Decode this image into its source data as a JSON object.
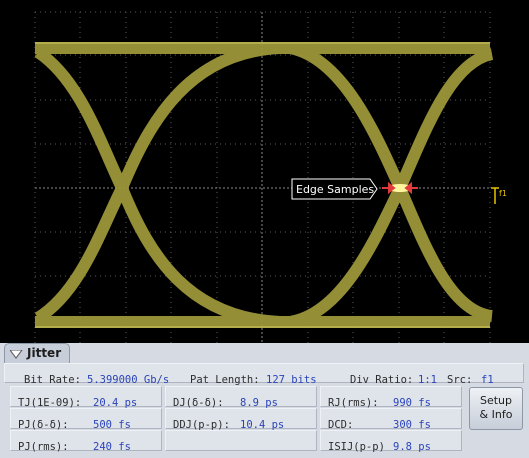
{
  "screen": {
    "marker_label": "Edge Samples",
    "trigger_label": "f1"
  },
  "panel": {
    "tab": "Jitter",
    "header": [
      {
        "label": "Bit Rate:",
        "value": "5.399000 Gb/s"
      },
      {
        "label": "Pat Length:",
        "value": "127 bits"
      },
      {
        "label": "Div Ratio:",
        "value": "1:1"
      },
      {
        "label": "Src:",
        "value": "f1"
      }
    ],
    "measurements": [
      [
        {
          "label": "TJ(1E-09):",
          "value": "20.4 ps"
        },
        {
          "label": "DJ(δ-δ):",
          "value": "8.9 ps"
        },
        {
          "label": "RJ(rms):",
          "value": "990 fs"
        }
      ],
      [
        {
          "label": "PJ(δ-δ):",
          "value": "500 fs"
        },
        {
          "label": "DDJ(p-p):",
          "value": "10.4 ps"
        },
        {
          "label": "DCD:",
          "value": "300 fs"
        }
      ],
      [
        {
          "label": "PJ(rms):",
          "value": "240 fs"
        },
        {
          "label": "ISIJ(p-p)",
          "value": "9.8 ps"
        }
      ]
    ],
    "button": [
      "Setup",
      "& Info"
    ]
  }
}
